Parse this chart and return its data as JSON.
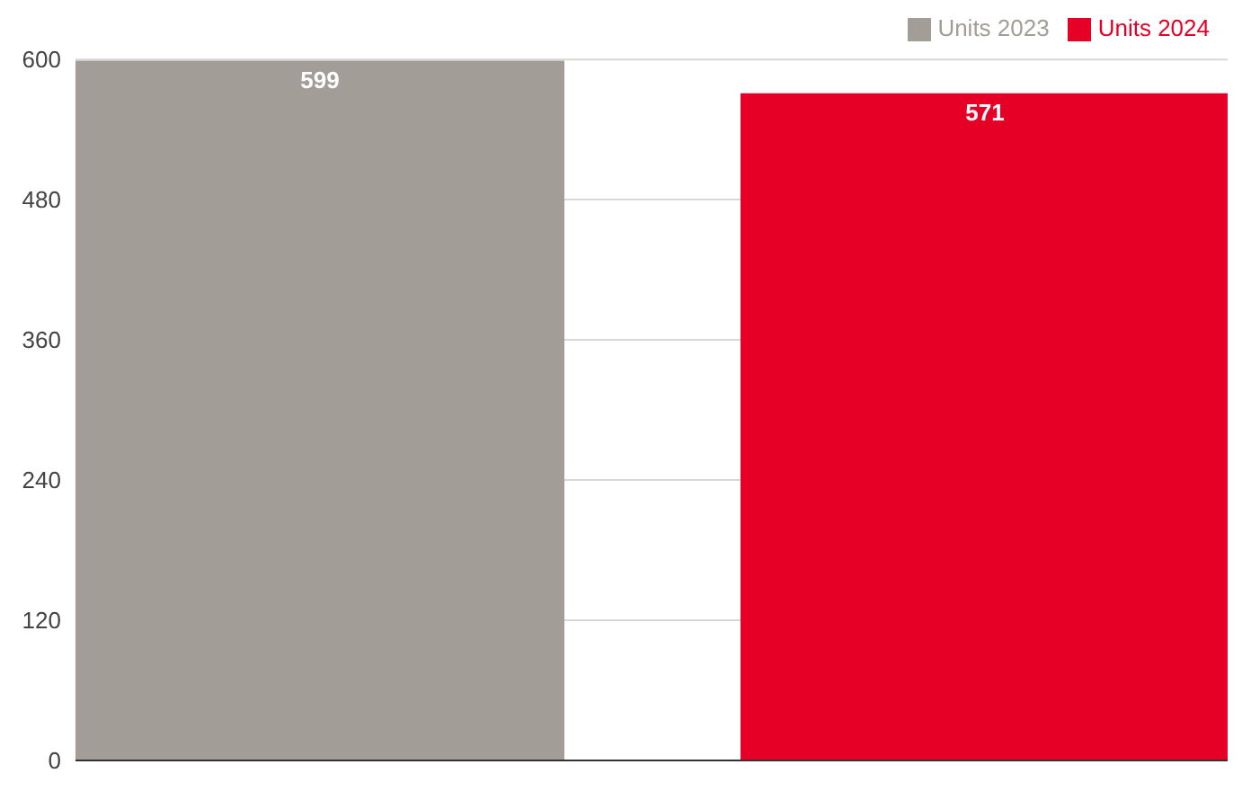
{
  "chart_data": {
    "type": "bar",
    "categories": [
      null
    ],
    "series": [
      {
        "name": "Units 2023",
        "color": "#a29d97",
        "values": [
          599
        ]
      },
      {
        "name": "Units 2024",
        "color": "#e60026",
        "values": [
          571
        ]
      }
    ],
    "ylim": [
      0,
      600
    ],
    "yticks": [
      0,
      120,
      240,
      360,
      480,
      600
    ],
    "grid": "y",
    "legend": "top right",
    "data_labels": true
  }
}
